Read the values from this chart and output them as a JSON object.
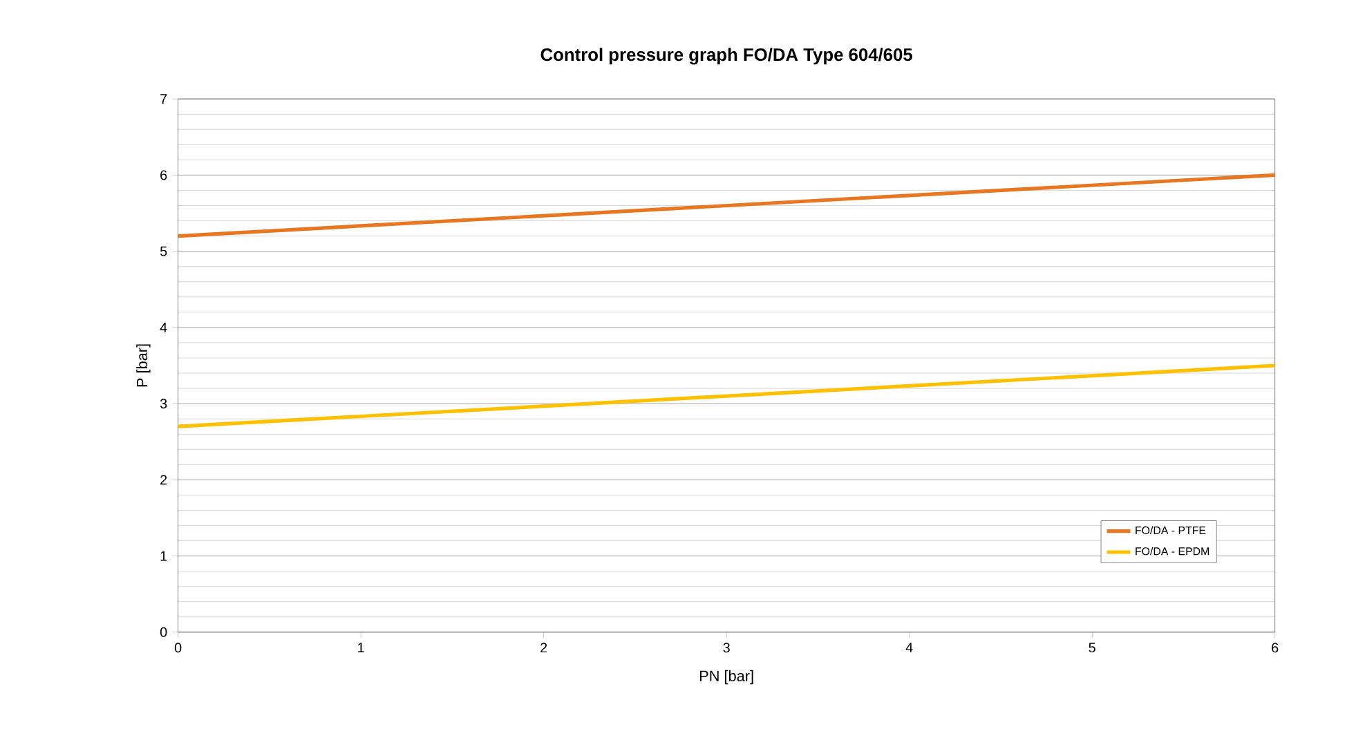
{
  "chart_data": {
    "type": "line",
    "title": "Control pressure graph FO/DA Type 604/605",
    "xlabel": "PN [bar]",
    "ylabel": "P [bar]",
    "x": [
      0,
      6
    ],
    "series": [
      {
        "name": "FO/DA - PTFE",
        "color": "#e87722",
        "values": [
          5.2,
          6.0
        ]
      },
      {
        "name": "FO/DA - EPDM",
        "color": "#ffc000",
        "values": [
          2.7,
          3.5
        ]
      }
    ],
    "xlim": [
      0,
      6
    ],
    "xticks": [
      0,
      1,
      2,
      3,
      4,
      5,
      6
    ],
    "ylim": [
      0,
      7
    ],
    "yticks": [
      0,
      1,
      2,
      3,
      4,
      5,
      6,
      7
    ],
    "grid": "y",
    "legend": "bottom right",
    "marker": "none",
    "line_style": "solid"
  }
}
